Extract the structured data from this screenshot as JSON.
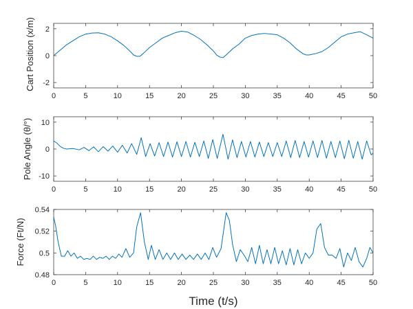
{
  "chart_data": [
    {
      "type": "line",
      "ylabel": "Cart Position (x/m)",
      "xlabel": "",
      "xlim": [
        0,
        50
      ],
      "ylim": [
        -2.4,
        2.4
      ],
      "xticks": [
        "0",
        "5",
        "10",
        "15",
        "20",
        "25",
        "30",
        "35",
        "40",
        "45",
        "50"
      ],
      "yticks": [
        "-2",
        "0",
        "2"
      ],
      "color": "#0072BD",
      "series": [
        {
          "x": [
            0,
            1,
            2,
            3,
            4,
            5,
            6,
            7,
            8,
            9,
            10,
            11,
            12,
            12.5,
            13,
            13.5,
            14,
            15,
            16,
            17,
            18,
            19,
            20,
            21,
            22,
            23,
            24,
            25,
            25.5,
            26,
            26.5,
            27,
            28,
            29,
            30,
            31,
            32,
            33,
            34,
            35,
            36,
            37,
            38,
            39,
            39.5,
            40,
            40.5,
            41,
            42,
            43,
            44,
            45,
            46,
            47,
            48,
            49,
            50
          ],
          "values": [
            0,
            0.4,
            0.8,
            1.1,
            1.4,
            1.6,
            1.68,
            1.7,
            1.6,
            1.4,
            1.1,
            0.75,
            0.3,
            0.05,
            -0.05,
            -0.05,
            0.15,
            0.6,
            0.95,
            1.3,
            1.5,
            1.7,
            1.82,
            1.75,
            1.5,
            1.2,
            0.8,
            0.35,
            0.05,
            -0.1,
            -0.15,
            0.05,
            0.5,
            0.85,
            1.3,
            1.5,
            1.6,
            1.65,
            1.6,
            1.55,
            1.3,
            0.95,
            0.5,
            0.15,
            0.05,
            0.05,
            0.1,
            0.15,
            0.3,
            0.6,
            1.0,
            1.4,
            1.6,
            1.7,
            1.78,
            1.55,
            1.3
          ]
        }
      ]
    },
    {
      "type": "line",
      "ylabel": "Pole Angle (θ/°)",
      "xlabel": "",
      "xlim": [
        0,
        50
      ],
      "ylim": [
        -12,
        12
      ],
      "xticks": [
        "0",
        "5",
        "10",
        "15",
        "20",
        "25",
        "30",
        "35",
        "40",
        "45",
        "50"
      ],
      "yticks": [
        "-10",
        "0",
        "10"
      ],
      "color": "#0072BD",
      "series": [
        {
          "x": [
            0,
            0.5,
            1,
            1.5,
            2,
            3,
            4,
            4.75,
            5.5,
            6.25,
            7,
            7.75,
            8.5,
            9.25,
            10,
            10.75,
            11.5,
            12.2,
            13,
            13.7,
            14.4,
            15.1,
            15.8,
            16.5,
            17.2,
            17.9,
            18.6,
            19.3,
            20,
            20.7,
            21.4,
            22.1,
            22.8,
            23.5,
            24.2,
            24.9,
            25.6,
            26.5,
            27.3,
            28,
            28.7,
            29.4,
            30.1,
            30.8,
            31.5,
            32.2,
            32.9,
            33.6,
            34.3,
            35,
            35.7,
            36.4,
            37.1,
            37.8,
            38.5,
            39.2,
            39.9,
            40.6,
            41.3,
            42,
            42.7,
            43.4,
            44.1,
            44.8,
            45.5,
            46.2,
            46.9,
            47.6,
            48.3,
            49,
            49.7,
            50
          ],
          "values": [
            3,
            2.2,
            1,
            0.3,
            0,
            0.2,
            -0.3,
            0.6,
            -0.6,
            0.8,
            -1,
            0.9,
            -0.8,
            1.1,
            -1.2,
            1.4,
            -1.5,
            2,
            -2,
            4.2,
            -2.8,
            2,
            -2.6,
            2.4,
            -2.8,
            2.6,
            -3,
            2.7,
            -2.8,
            2.8,
            -3,
            2.5,
            -2.8,
            3,
            -3.5,
            3.5,
            -3.5,
            5.5,
            -3.8,
            3.4,
            -3.2,
            2.8,
            -3,
            2.8,
            -3,
            2.6,
            -2.8,
            2.4,
            -2.8,
            2.4,
            -2.8,
            3,
            -3.2,
            3.2,
            -3.2,
            2.8,
            -3,
            3,
            -3.2,
            3.2,
            -3.4,
            2.8,
            -3.2,
            3,
            -3.6,
            3.2,
            -3.4,
            2.8,
            -3.8,
            3,
            -2.2,
            -1.5
          ]
        }
      ]
    },
    {
      "type": "line",
      "ylabel": "Force (Ft/N)",
      "xlabel": "Time (t/s)",
      "xlim": [
        0,
        50
      ],
      "ylim": [
        0.48,
        0.54
      ],
      "xticks": [
        "0",
        "5",
        "10",
        "15",
        "20",
        "25",
        "30",
        "35",
        "40",
        "45",
        "50"
      ],
      "yticks": [
        "0.48",
        "0.5",
        "0.52",
        "0.54"
      ],
      "color": "#0072BD",
      "series": [
        {
          "x": [
            0,
            0.3,
            0.7,
            1.2,
            1.7,
            2.2,
            2.7,
            3.2,
            3.7,
            4.2,
            4.7,
            5.2,
            5.7,
            6.2,
            6.7,
            7.2,
            7.7,
            8.2,
            8.7,
            9.2,
            9.7,
            10.2,
            10.7,
            11.3,
            11.9,
            12.5,
            13,
            13.6,
            14.2,
            14.8,
            15.3,
            15.9,
            16.5,
            17.1,
            17.7,
            18.3,
            18.9,
            19.5,
            20.1,
            20.7,
            21.3,
            21.9,
            22.5,
            23.1,
            23.7,
            24.3,
            24.9,
            25.5,
            26.2,
            27,
            27.5,
            28,
            28.6,
            29.2,
            29.8,
            30.4,
            31,
            31.6,
            32.2,
            32.8,
            33.4,
            34,
            34.6,
            35.2,
            35.8,
            36.4,
            37,
            37.6,
            38.2,
            38.8,
            39.4,
            40,
            40.6,
            41.2,
            41.8,
            42.4,
            43,
            43.6,
            44.2,
            44.8,
            45.4,
            46,
            46.6,
            47.2,
            47.8,
            48.4,
            49,
            49.5,
            50
          ],
          "values": [
            0.533,
            0.525,
            0.51,
            0.497,
            0.497,
            0.502,
            0.497,
            0.5,
            0.495,
            0.497,
            0.494,
            0.495,
            0.494,
            0.497,
            0.494,
            0.496,
            0.495,
            0.497,
            0.494,
            0.497,
            0.495,
            0.499,
            0.496,
            0.504,
            0.496,
            0.5,
            0.524,
            0.537,
            0.51,
            0.494,
            0.507,
            0.494,
            0.503,
            0.494,
            0.5,
            0.494,
            0.5,
            0.494,
            0.499,
            0.494,
            0.498,
            0.494,
            0.499,
            0.494,
            0.5,
            0.494,
            0.505,
            0.496,
            0.504,
            0.537,
            0.53,
            0.508,
            0.492,
            0.503,
            0.498,
            0.492,
            0.505,
            0.49,
            0.507,
            0.49,
            0.503,
            0.49,
            0.505,
            0.49,
            0.502,
            0.489,
            0.504,
            0.489,
            0.503,
            0.49,
            0.5,
            0.495,
            0.5,
            0.522,
            0.527,
            0.505,
            0.498,
            0.498,
            0.495,
            0.504,
            0.487,
            0.5,
            0.493,
            0.505,
            0.492,
            0.487,
            0.495,
            0.505,
            0.5
          ]
        }
      ]
    }
  ]
}
